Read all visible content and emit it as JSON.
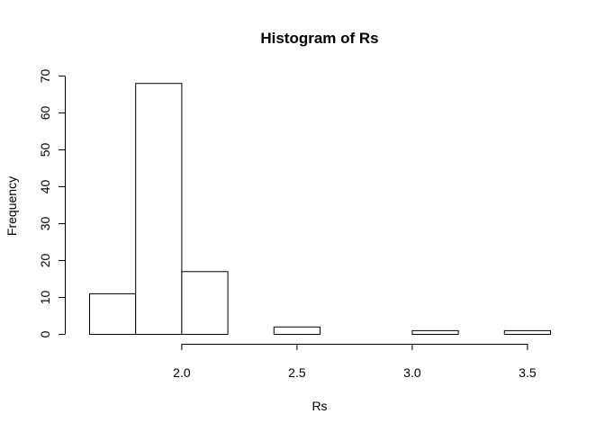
{
  "chart_data": {
    "type": "bar",
    "title": "Histogram of Rs",
    "xlabel": "Rs",
    "ylabel": "Frequency",
    "bins": [
      {
        "from": 1.6,
        "to": 1.8,
        "count": 11
      },
      {
        "from": 1.8,
        "to": 2.0,
        "count": 68
      },
      {
        "from": 2.0,
        "to": 2.2,
        "count": 17
      },
      {
        "from": 2.2,
        "to": 2.4,
        "count": 0
      },
      {
        "from": 2.4,
        "to": 2.6,
        "count": 2
      },
      {
        "from": 2.6,
        "to": 2.8,
        "count": 0
      },
      {
        "from": 2.8,
        "to": 3.0,
        "count": 0
      },
      {
        "from": 3.0,
        "to": 3.2,
        "count": 1
      },
      {
        "from": 3.2,
        "to": 3.4,
        "count": 0
      },
      {
        "from": 3.4,
        "to": 3.6,
        "count": 1
      }
    ],
    "x_ticks": [
      "2.0",
      "2.5",
      "3.0",
      "3.5"
    ],
    "y_ticks": [
      "0",
      "10",
      "20",
      "30",
      "40",
      "50",
      "60",
      "70"
    ],
    "xlim": [
      1.6,
      3.6
    ],
    "ylim": [
      0,
      70
    ],
    "grid": false
  }
}
